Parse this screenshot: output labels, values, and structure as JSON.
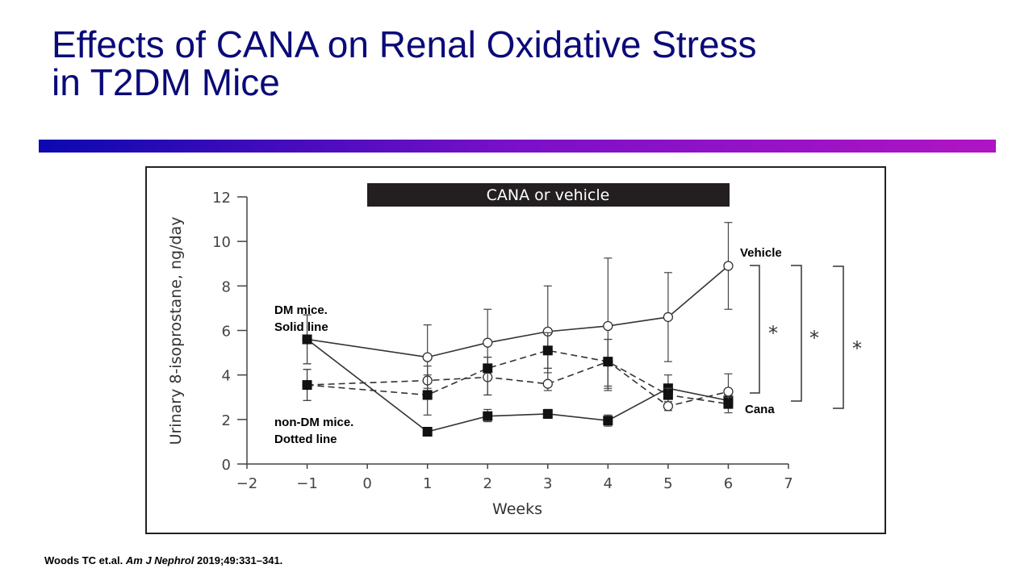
{
  "slide": {
    "title_line1": "Effects of CANA on Renal Oxidative Stress",
    "title_line2": "in T2DM Mice",
    "accent_gradient": [
      "#0c08b0",
      "#b014c4"
    ],
    "title_color": "#0a0a78",
    "citation": {
      "authors": "Woods TC et.al.",
      "journal": "Am J Nephrol",
      "details": "2019;49:331–341."
    }
  },
  "chart_data": {
    "type": "line",
    "title": "",
    "banner": "CANA or vehicle",
    "xlabel": "Weeks",
    "ylabel": "Urinary 8-isoprostane, ng/day",
    "xlim": [
      -2,
      7
    ],
    "ylim": [
      0,
      12
    ],
    "xticks": [
      "−2",
      "−1",
      "0",
      "1",
      "2",
      "3",
      "4",
      "5",
      "6",
      "7"
    ],
    "yticks": [
      "0",
      "2",
      "4",
      "6",
      "8",
      "10",
      "12"
    ],
    "grid": false,
    "x": [
      -1,
      1,
      2,
      3,
      4,
      5,
      6
    ],
    "series": [
      {
        "group": "DM",
        "treatment": "Vehicle",
        "line": "solid",
        "marker": "open-circle",
        "values": [
          5.6,
          4.8,
          5.45,
          5.95,
          6.2,
          6.6,
          8.9
        ],
        "err_low": [
          4.5,
          3.4,
          4.0,
          4.1,
          3.3,
          4.6,
          6.95
        ],
        "err_high": [
          6.7,
          6.25,
          6.95,
          8.0,
          9.25,
          8.6,
          10.85
        ]
      },
      {
        "group": "DM",
        "treatment": "Cana",
        "line": "solid",
        "marker": "filled-square",
        "values": [
          5.6,
          1.45,
          2.15,
          2.25,
          1.95,
          3.4,
          2.85
        ],
        "err_low": [
          4.5,
          1.4,
          1.9,
          2.05,
          1.7,
          3.0,
          2.5
        ],
        "err_high": [
          6.7,
          1.55,
          2.45,
          2.45,
          2.2,
          4.0,
          3.1
        ]
      },
      {
        "group": "non-DM",
        "treatment": "Vehicle",
        "line": "dashed",
        "marker": "open-circle",
        "values": [
          3.55,
          3.75,
          3.9,
          3.6,
          4.6,
          2.6,
          3.25
        ],
        "err_low": [
          2.85,
          3.3,
          3.1,
          3.3,
          3.5,
          2.4,
          2.6
        ],
        "err_high": [
          4.25,
          4.4,
          4.8,
          4.3,
          5.6,
          2.9,
          4.05
        ]
      },
      {
        "group": "non-DM",
        "treatment": "Cana",
        "line": "dashed",
        "marker": "filled-square",
        "values": [
          3.55,
          3.1,
          4.3,
          5.1,
          4.6,
          3.1,
          2.7
        ],
        "err_low": [
          2.85,
          2.2,
          3.1,
          4.3,
          3.4,
          2.8,
          2.3
        ],
        "err_high": [
          4.25,
          4.0,
          4.8,
          5.9,
          5.6,
          3.4,
          3.0
        ]
      }
    ],
    "annotations": {
      "dm_label_1": "DM mice.",
      "dm_label_2": "Solid line",
      "nondm_label_1": "non-DM mice.",
      "nondm_label_2": "Dotted line",
      "vehicle_label": "Vehicle",
      "cana_label": "Cana",
      "significance": [
        "*",
        "*",
        "*"
      ]
    }
  }
}
